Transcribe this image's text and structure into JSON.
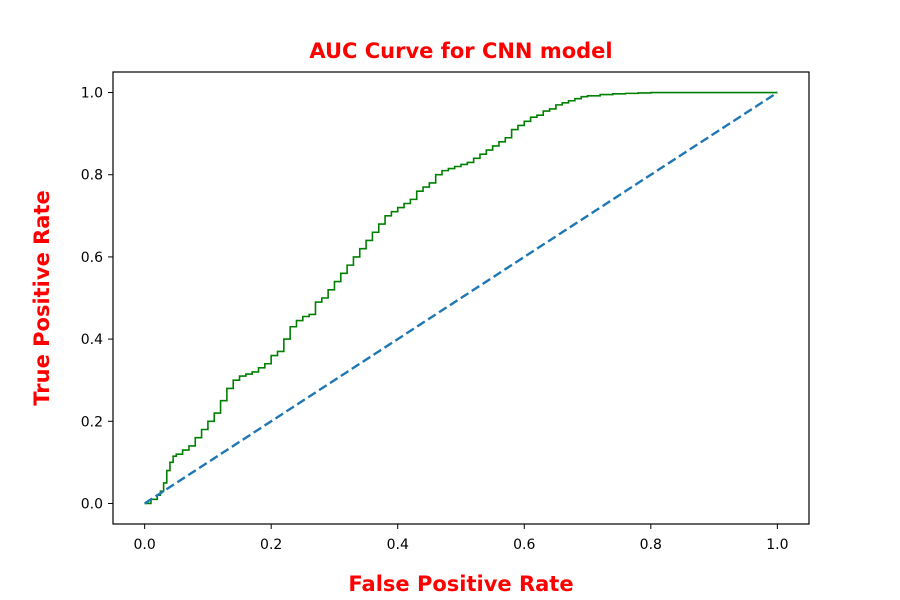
{
  "chart_data": {
    "type": "line",
    "title": "AUC Curve for CNN model",
    "xlabel": "False Positive Rate",
    "ylabel": "True Positive Rate",
    "xlim": [
      -0.05,
      1.05
    ],
    "ylim": [
      -0.05,
      1.05
    ],
    "x_ticks": [
      "0.0",
      "0.2",
      "0.4",
      "0.6",
      "0.8",
      "1.0"
    ],
    "y_ticks": [
      "0.0",
      "0.2",
      "0.4",
      "0.6",
      "0.8",
      "1.0"
    ],
    "grid": false,
    "series": [
      {
        "style": "solid",
        "color": "#008000",
        "x": [
          0.0,
          0.01,
          0.02,
          0.025,
          0.03,
          0.035,
          0.04,
          0.045,
          0.05,
          0.06,
          0.07,
          0.08,
          0.09,
          0.1,
          0.11,
          0.12,
          0.13,
          0.14,
          0.15,
          0.16,
          0.17,
          0.18,
          0.19,
          0.2,
          0.21,
          0.22,
          0.23,
          0.24,
          0.25,
          0.26,
          0.27,
          0.28,
          0.29,
          0.3,
          0.31,
          0.32,
          0.33,
          0.34,
          0.35,
          0.36,
          0.37,
          0.38,
          0.39,
          0.4,
          0.41,
          0.42,
          0.43,
          0.44,
          0.45,
          0.46,
          0.47,
          0.48,
          0.49,
          0.5,
          0.51,
          0.52,
          0.53,
          0.54,
          0.55,
          0.56,
          0.57,
          0.58,
          0.59,
          0.6,
          0.61,
          0.62,
          0.63,
          0.64,
          0.65,
          0.66,
          0.67,
          0.68,
          0.69,
          0.7,
          0.72,
          0.74,
          0.76,
          0.78,
          0.8,
          0.85,
          0.9,
          0.95,
          1.0
        ],
        "y": [
          0.0,
          0.01,
          0.02,
          0.03,
          0.05,
          0.08,
          0.1,
          0.115,
          0.12,
          0.13,
          0.14,
          0.16,
          0.18,
          0.2,
          0.22,
          0.25,
          0.28,
          0.3,
          0.31,
          0.315,
          0.32,
          0.33,
          0.34,
          0.36,
          0.37,
          0.4,
          0.43,
          0.445,
          0.455,
          0.46,
          0.49,
          0.5,
          0.52,
          0.54,
          0.56,
          0.58,
          0.6,
          0.62,
          0.64,
          0.66,
          0.68,
          0.7,
          0.71,
          0.72,
          0.73,
          0.74,
          0.76,
          0.77,
          0.78,
          0.8,
          0.81,
          0.815,
          0.82,
          0.825,
          0.83,
          0.84,
          0.85,
          0.86,
          0.87,
          0.88,
          0.89,
          0.91,
          0.92,
          0.93,
          0.94,
          0.945,
          0.955,
          0.96,
          0.97,
          0.975,
          0.98,
          0.985,
          0.99,
          0.992,
          0.995,
          0.997,
          0.998,
          0.999,
          1.0,
          1.0,
          1.0,
          1.0,
          1.0
        ]
      },
      {
        "style": "dashed",
        "color": "#1f77b4",
        "x": [
          0.0,
          1.0
        ],
        "y": [
          0.0,
          1.0
        ]
      }
    ]
  }
}
